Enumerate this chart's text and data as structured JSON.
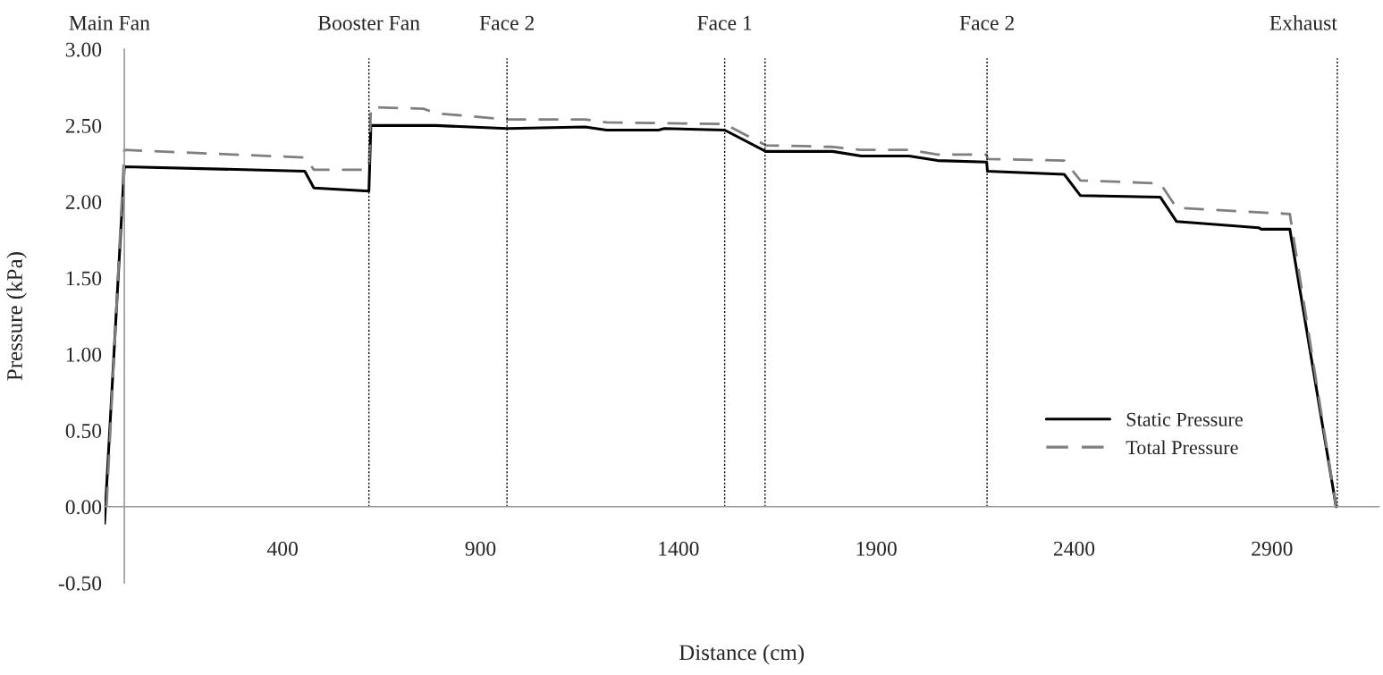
{
  "chart_data": {
    "type": "line",
    "xlabel": "Distance (cm)",
    "ylabel": "Pressure (kPa)",
    "xlim": [
      -50,
      3170
    ],
    "xticks": [
      400,
      900,
      1400,
      1900,
      2400,
      2900
    ],
    "ylim": [
      -0.5,
      3.0
    ],
    "yticks": [
      {
        "value": -0.5,
        "label": "-0.50"
      },
      {
        "value": 0,
        "label": "0.00"
      },
      {
        "value": 0.5,
        "label": "0.50"
      },
      {
        "value": 1.0,
        "label": "1.00"
      },
      {
        "value": 1.5,
        "label": "1.50"
      },
      {
        "value": 2.0,
        "label": "2.00"
      },
      {
        "value": 2.5,
        "label": "2.50"
      },
      {
        "value": 3.0,
        "label": "3.00"
      }
    ],
    "grid": false,
    "legend": "bottom right",
    "marker": "none",
    "series": [
      {
        "name": "Static Pressure",
        "color": "#000000",
        "line_style": "solid",
        "x": [
          -50,
          0,
          456,
          479,
          618,
          623,
          787,
          967,
          1164,
          1219,
          1350,
          1364,
          1517,
          1621,
          1790,
          1862,
          1983,
          2055,
          2179,
          2181,
          2375,
          2416,
          2618,
          2659,
          2866,
          2873,
          2945,
          3062
        ],
        "values": [
          -0.11,
          2.23,
          2.2,
          2.09,
          2.07,
          2.5,
          2.5,
          2.48,
          2.49,
          2.47,
          2.47,
          2.48,
          2.47,
          2.33,
          2.33,
          2.3,
          2.3,
          2.27,
          2.26,
          2.2,
          2.18,
          2.04,
          2.03,
          1.87,
          1.83,
          1.82,
          1.82,
          0.0
        ]
      },
      {
        "name": "Total Pressure",
        "color": "#7f7f7f",
        "line_style": "dashed",
        "x": [
          -45,
          0,
          456,
          479,
          618,
          623,
          756,
          787,
          967,
          1164,
          1219,
          1517,
          1621,
          1790,
          1862,
          1983,
          2055,
          2179,
          2181,
          2375,
          2416,
          2618,
          2659,
          2945,
          3062
        ],
        "values": [
          0.0,
          2.34,
          2.29,
          2.21,
          2.21,
          2.62,
          2.61,
          2.58,
          2.54,
          2.54,
          2.52,
          2.51,
          2.37,
          2.36,
          2.34,
          2.34,
          2.31,
          2.31,
          2.28,
          2.27,
          2.14,
          2.12,
          1.96,
          1.92,
          0.0
        ]
      }
    ],
    "ref_lines": [
      {
        "axis": "x",
        "value": 618,
        "color": "#000000",
        "line_style": "dotted",
        "label": "Booster Fan"
      },
      {
        "axis": "x",
        "value": 967,
        "color": "#000000",
        "line_style": "dotted",
        "label": "Face 2"
      },
      {
        "axis": "x",
        "value": 1517,
        "color": "#000000",
        "line_style": "dotted",
        "label": "Face 1"
      },
      {
        "axis": "x",
        "value": 1619,
        "color": "#000000",
        "line_style": "dotted"
      },
      {
        "axis": "x",
        "value": 2180,
        "color": "#000000",
        "line_style": "dotted",
        "label": "Face 2"
      },
      {
        "axis": "x",
        "value": 3065,
        "color": "#000000",
        "line_style": "dotted",
        "label": "Exhaust"
      }
    ],
    "annotations": [
      "Main Fan"
    ]
  }
}
